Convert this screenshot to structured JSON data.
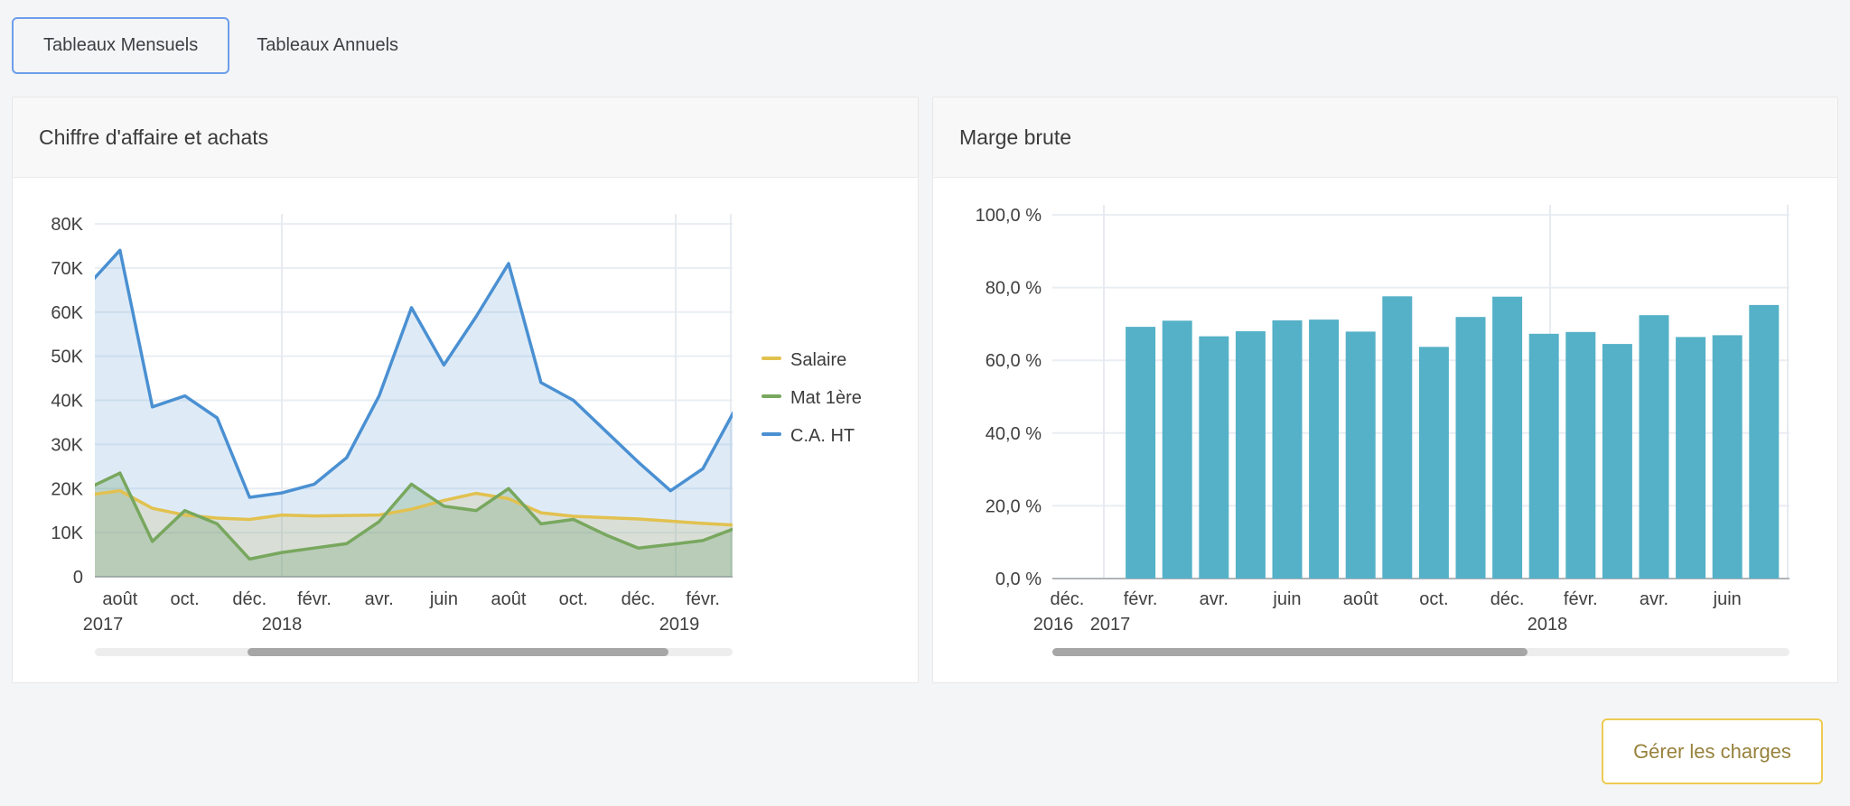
{
  "tabs": {
    "monthly": "Tableaux Mensuels",
    "annual": "Tableaux Annuels"
  },
  "cards": {
    "left_title": "Chiffre d'affaire et achats",
    "right_title": "Marge brute"
  },
  "actions": {
    "manage_charges": "Gérer les charges"
  },
  "colors": {
    "selected_tab_border": "#6d9eeb",
    "button_border": "#eecb52",
    "button_text": "#97823c",
    "salaire": "#e2c14f",
    "mat1ere": "#78a75e",
    "ca_ht": "#4a90d2",
    "marge_bars": "#55b1c7",
    "gridline": "#e9eef3",
    "axis_line": "#b1b4b9",
    "axis_text": "#404040",
    "scroll_track": "#ededee",
    "scroll_thumb": "#a6a6a6"
  },
  "chart_data": [
    {
      "type": "area",
      "title": "Chiffre d'affaire et achats",
      "x": [
        "juil. 2017",
        "août 2017",
        "sept. 2017",
        "oct. 2017",
        "nov. 2017",
        "déc. 2017",
        "janv. 2018",
        "févr. 2018",
        "mars 2018",
        "avr. 2018",
        "mai 2018",
        "juin 2018",
        "juil. 2018",
        "août 2018",
        "sept. 2018",
        "oct. 2018",
        "nov. 2018",
        "déc. 2018",
        "janv. 2019",
        "févr. 2019",
        "mars 2019"
      ],
      "series": [
        {
          "name": "Salaire",
          "color": "#e2c14f",
          "values": [
            18500,
            19500,
            15500,
            14000,
            13300,
            13000,
            14000,
            13800,
            13900,
            14000,
            15300,
            17300,
            18900,
            17700,
            14500,
            13700,
            13400,
            13100,
            12600,
            12100,
            11700
          ]
        },
        {
          "name": "Mat 1ère",
          "color": "#78a75e",
          "values": [
            20000,
            23500,
            8000,
            15000,
            12000,
            4000,
            5500,
            6500,
            7500,
            12500,
            21000,
            16000,
            15000,
            20000,
            12000,
            13000,
            9500,
            6500,
            7300,
            8200,
            11000
          ]
        },
        {
          "name": "C.A. HT",
          "color": "#4a90d2",
          "values": [
            66000,
            74000,
            38500,
            41000,
            36000,
            18000,
            19000,
            21000,
            27000,
            41000,
            61000,
            48000,
            59000,
            71000,
            44000,
            40000,
            33000,
            26000,
            19500,
            24500,
            38000
          ]
        }
      ],
      "ylim": [
        0,
        80000
      ],
      "ytick_labels": [
        "0",
        "10K",
        "20K",
        "30K",
        "40K",
        "50K",
        "60K",
        "70K",
        "80K"
      ],
      "xtick_labels": [
        "août",
        "oct.",
        "déc.",
        "févr.",
        "avr.",
        "juin",
        "août",
        "oct.",
        "déc.",
        "févr."
      ],
      "year_labels": [
        "2017",
        "2018",
        "2019"
      ],
      "legend": [
        "Salaire",
        "Mat 1ère",
        "C.A. HT"
      ],
      "legend_position": "right",
      "grid": true,
      "scrollbar": {
        "start": 0.24,
        "end": 0.9
      }
    },
    {
      "type": "bar",
      "title": "Marge brute",
      "x": [
        "févr. 2017",
        "mars 2017",
        "avr. 2017",
        "mai 2017",
        "juin 2017",
        "juil. 2017",
        "août 2017",
        "sept. 2017",
        "oct. 2017",
        "nov. 2017",
        "déc. 2017",
        "janv. 2018",
        "févr. 2018",
        "mars 2018",
        "avr. 2018",
        "mai 2018",
        "juin 2018",
        "juil. 2018"
      ],
      "values": [
        69.2,
        70.9,
        66.6,
        68.0,
        71.0,
        71.2,
        67.9,
        77.6,
        63.7,
        71.9,
        77.5,
        67.3,
        67.8,
        64.5,
        72.4,
        66.4,
        66.9,
        75.2
      ],
      "unit": "%",
      "ylim": [
        0,
        100
      ],
      "ytick_labels": [
        "0,0 %",
        "20,0 %",
        "40,0 %",
        "60,0 %",
        "80,0 %",
        "100,0 %"
      ],
      "xtick_labels": [
        "déc.",
        "févr.",
        "avr.",
        "juin",
        "août",
        "oct.",
        "déc.",
        "févr.",
        "avr.",
        "juin"
      ],
      "year_labels": [
        "2016",
        "2017",
        "2018"
      ],
      "bar_color": "#55b1c7",
      "grid": true,
      "scrollbar": {
        "start": 0.0,
        "end": 0.645
      }
    }
  ]
}
